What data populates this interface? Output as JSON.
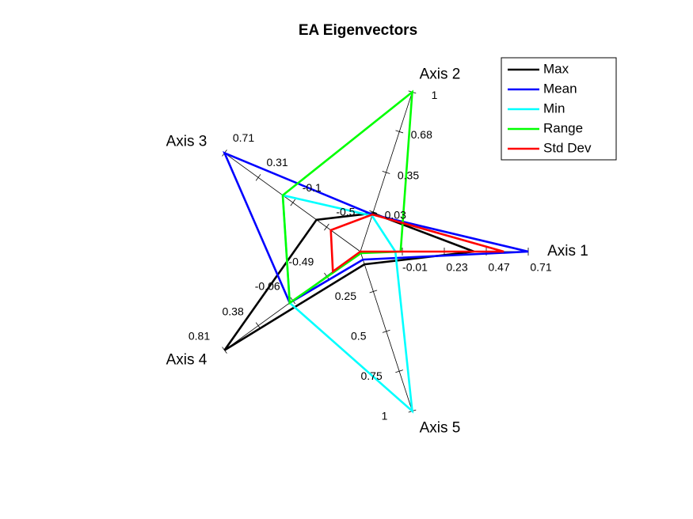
{
  "chart_data": {
    "type": "radar",
    "title": "EA Eigenvectors",
    "axes": [
      {
        "label": "Axis 1",
        "lim": [
          -0.25,
          0.71
        ],
        "ticks": [
          -0.01,
          0.23,
          0.47,
          0.71
        ]
      },
      {
        "label": "Axis 2",
        "lim": [
          -0.29,
          1
        ],
        "ticks": [
          0.03,
          0.35,
          0.68,
          1
        ]
      },
      {
        "label": "Axis 3",
        "lim": [
          -0.9,
          0.71
        ],
        "ticks": [
          -0.5,
          -0.1,
          0.31,
          0.71
        ]
      },
      {
        "label": "Axis 4",
        "lim": [
          -0.92,
          0.81
        ],
        "ticks": [
          -0.49,
          -0.06,
          0.38,
          0.81
        ]
      },
      {
        "label": "Axis 5",
        "lim": [
          0,
          1
        ],
        "ticks": [
          0.25,
          0.5,
          0.75,
          1
        ]
      }
    ],
    "series": [
      {
        "name": "Max",
        "color": "#000000",
        "values": [
          0.4,
          0.02,
          -0.38,
          0.81,
          0.08
        ]
      },
      {
        "name": "Mean",
        "color": "#0000ff",
        "values": [
          0.71,
          0.01,
          0.71,
          -0.02,
          0.05
        ]
      },
      {
        "name": "Min",
        "color": "#00ffff",
        "values": [
          -0.05,
          0.0,
          0.02,
          -0.02,
          1
        ]
      },
      {
        "name": "Range",
        "color": "#00ff00",
        "values": [
          -0.02,
          1,
          0.02,
          -0.02,
          0.01
        ]
      },
      {
        "name": "Std Dev",
        "color": "#ff0000",
        "values": [
          0.57,
          0.01,
          -0.55,
          -0.57,
          0.0
        ]
      }
    ],
    "legend": "upper right"
  }
}
